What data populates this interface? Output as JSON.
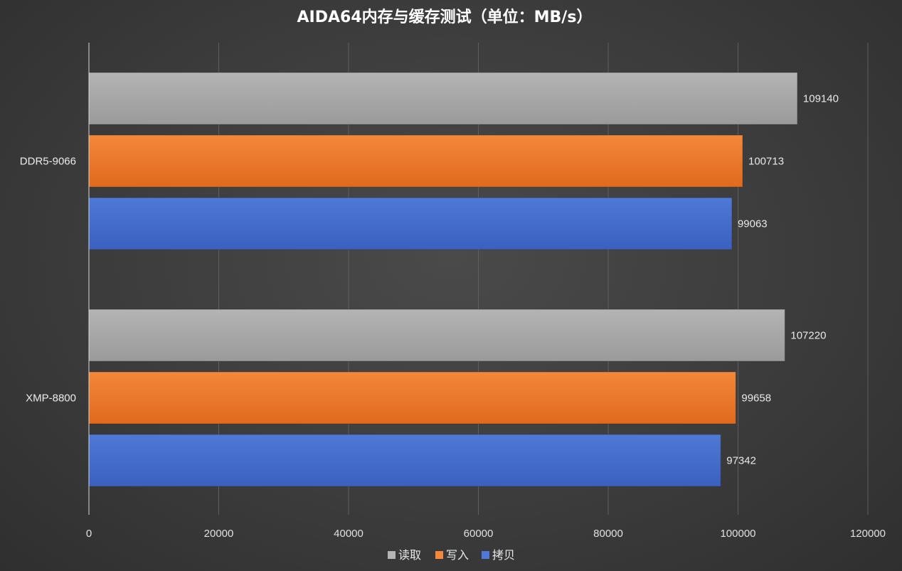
{
  "chart_data": {
    "type": "bar",
    "orientation": "horizontal",
    "title": "AIDA64内存与缓存测试（单位：MB/s）",
    "categories": [
      "DDR5-9066",
      "XMP-8800"
    ],
    "series": [
      {
        "name": "读取",
        "color": "#b4b4b4",
        "color_dark": "#9a9a9a",
        "values": [
          109140,
          107220
        ]
      },
      {
        "name": "写入",
        "color": "#f4873a",
        "color_dark": "#e06a1e",
        "values": [
          100713,
          99658
        ]
      },
      {
        "name": "拷贝",
        "color": "#4f79d6",
        "color_dark": "#3a60c0",
        "values": [
          99063,
          97342
        ]
      }
    ],
    "xlim": [
      0,
      120000
    ],
    "xticks": [
      0,
      20000,
      40000,
      60000,
      80000,
      100000,
      120000
    ],
    "xlabel": "",
    "ylabel": "",
    "grid": true,
    "data_labels": true,
    "legend": "bottom"
  }
}
